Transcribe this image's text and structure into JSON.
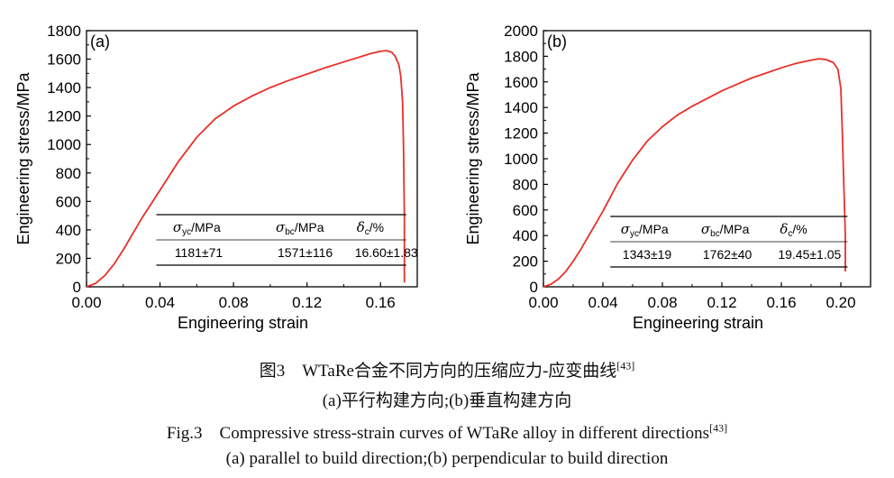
{
  "chart_data": [
    {
      "type": "line",
      "panel_label": "(a)",
      "xlabel": "Engineering strain",
      "ylabel": "Engineering stress/MPa",
      "xlim": [
        0,
        0.18
      ],
      "ylim": [
        0,
        1800
      ],
      "xticks": [
        0.0,
        0.04,
        0.08,
        0.12,
        0.16
      ],
      "xtick_labels": [
        "0.00",
        "0.04",
        "0.08",
        "0.12",
        "0.16"
      ],
      "yticks": [
        0,
        200,
        400,
        600,
        800,
        1000,
        1200,
        1400,
        1600,
        1800
      ],
      "ytick_labels": [
        "0",
        "200",
        "400",
        "600",
        "800",
        "1000",
        "1200",
        "1400",
        "1600",
        "1800"
      ],
      "series": [
        {
          "name": "parallel to build direction",
          "color": "#e8302a",
          "x": [
            0.0,
            0.005,
            0.01,
            0.015,
            0.02,
            0.025,
            0.03,
            0.035,
            0.04,
            0.05,
            0.06,
            0.07,
            0.08,
            0.09,
            0.1,
            0.11,
            0.12,
            0.13,
            0.14,
            0.15,
            0.155,
            0.16,
            0.163,
            0.166,
            0.168,
            0.17,
            0.171,
            0.172,
            0.1725,
            0.173,
            0.173
          ],
          "y": [
            0,
            25,
            80,
            160,
            260,
            370,
            480,
            580,
            680,
            880,
            1050,
            1180,
            1270,
            1340,
            1400,
            1450,
            1495,
            1540,
            1580,
            1620,
            1640,
            1655,
            1660,
            1650,
            1620,
            1560,
            1480,
            1300,
            1000,
            500,
            30
          ]
        }
      ],
      "table": {
        "headers": [
          "σyc/MPa",
          "σbc/MPa",
          "δc/%"
        ],
        "values": [
          "1181±71",
          "1571±116",
          "16.60±1.83"
        ]
      }
    },
    {
      "type": "line",
      "panel_label": "(b)",
      "xlabel": "Engineering strain",
      "ylabel": "Engineering stress/MPa",
      "xlim": [
        0,
        0.22
      ],
      "ylim": [
        0,
        2000
      ],
      "xticks": [
        0.0,
        0.04,
        0.08,
        0.12,
        0.16,
        0.2
      ],
      "xtick_labels": [
        "0.00",
        "0.04",
        "0.08",
        "0.12",
        "0.16",
        "0.20"
      ],
      "yticks": [
        0,
        200,
        400,
        600,
        800,
        1000,
        1200,
        1400,
        1600,
        1800,
        2000
      ],
      "ytick_labels": [
        "0",
        "200",
        "400",
        "600",
        "800",
        "1000",
        "1200",
        "1400",
        "1600",
        "1800",
        "2000"
      ],
      "series": [
        {
          "name": "perpendicular to build direction",
          "color": "#e8302a",
          "x": [
            0.0,
            0.005,
            0.01,
            0.015,
            0.02,
            0.025,
            0.03,
            0.035,
            0.04,
            0.045,
            0.05,
            0.06,
            0.07,
            0.08,
            0.09,
            0.1,
            0.11,
            0.12,
            0.13,
            0.14,
            0.15,
            0.16,
            0.17,
            0.18,
            0.185,
            0.19,
            0.195,
            0.198,
            0.2,
            0.201,
            0.202,
            0.203,
            0.203
          ],
          "y": [
            0,
            20,
            60,
            120,
            200,
            290,
            390,
            490,
            590,
            700,
            810,
            990,
            1140,
            1250,
            1340,
            1410,
            1470,
            1530,
            1580,
            1630,
            1670,
            1710,
            1745,
            1770,
            1780,
            1775,
            1750,
            1700,
            1550,
            1200,
            800,
            400,
            120
          ]
        }
      ],
      "table": {
        "headers": [
          "σyc/MPa",
          "σbc/MPa",
          "δc/%"
        ],
        "values": [
          "1343±19",
          "1762±40",
          "19.45±1.05"
        ]
      }
    }
  ],
  "caption": {
    "cn_title": "图3　WTaRe合金不同方向的压缩应力-应变曲线",
    "cn_ref": "[43]",
    "cn_sub": "(a)平行构建方向;(b)垂直构建方向",
    "en_title": "Fig.3　Compressive stress-strain curves of WTaRe alloy in different directions",
    "en_ref": "[43]",
    "en_sub": "(a) parallel to build direction;(b) perpendicular to build direction"
  }
}
